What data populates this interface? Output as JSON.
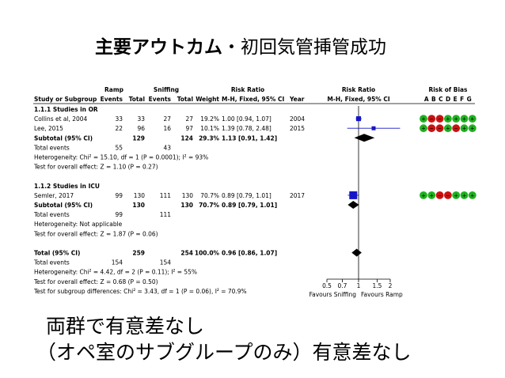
{
  "title": {
    "bold": "主要アウトカム",
    "sep": "・",
    "rest": "初回気管挿管成功"
  },
  "headers": {
    "group1": "Ramp",
    "group2": "Sniffing",
    "risk_ratio": "Risk Ratio",
    "risk_ratio2": "Risk Ratio",
    "risk_of_bias": "Risk of Bias",
    "study": "Study or Subgroup",
    "events1": "Events",
    "total1": "Total",
    "events2": "Events",
    "total2": "Total",
    "weight": "Weight",
    "method": "M-H, Fixed, 95% CI",
    "year": "Year",
    "method2": "M-H, Fixed, 95% CI",
    "bias_letters": "A B C D E F G"
  },
  "rows": [
    {
      "text": "1.1.1 Studies in OR",
      "bold": true
    },
    {
      "text": "Collins et al, 2004",
      "e1": "33",
      "t1": "33",
      "e2": "27",
      "t2": "27",
      "w": "19.2%",
      "ci": "1.00 [0.94, 1.07]",
      "yr": "2004"
    },
    {
      "text": "Lee, 2015",
      "e1": "22",
      "t1": "96",
      "e2": "16",
      "t2": "97",
      "w": "10.1%",
      "ci": "1.39 [0.78, 2.48]",
      "yr": "2015"
    },
    {
      "text": "Subtotal (95% CI)",
      "bold": true,
      "t1": "129",
      "t2": "124",
      "w": "29.3%",
      "ci": "1.13 [0.91, 1.42]"
    },
    {
      "text": "Total events",
      "e1": "55",
      "e2": "43"
    },
    {
      "text": "Heterogeneity: Chi² = 15.10, df = 1 (P = 0.0001); I² = 93%"
    },
    {
      "text": "Test for overall effect: Z = 1.10 (P = 0.27)"
    },
    {
      "text": ""
    },
    {
      "text": "1.1.2 Studies in ICU",
      "bold": true
    },
    {
      "text": "Semler, 2017",
      "e1": "99",
      "t1": "130",
      "e2": "111",
      "t2": "130",
      "w": "70.7%",
      "ci": "0.89 [0.79, 1.01]",
      "yr": "2017"
    },
    {
      "text": "Subtotal (95% CI)",
      "bold": true,
      "t1": "130",
      "t2": "130",
      "w": "70.7%",
      "ci": "0.89 [0.79, 1.01]"
    },
    {
      "text": "Total events",
      "e1": "99",
      "e2": "111"
    },
    {
      "text": "Heterogeneity: Not applicable"
    },
    {
      "text": "Test for overall effect: Z = 1.87 (P = 0.06)"
    },
    {
      "text": ""
    },
    {
      "text": "Total (95% CI)",
      "bold": true,
      "t1": "259",
      "t2": "254",
      "w": "100.0%",
      "ci": "0.96 [0.86, 1.07]"
    },
    {
      "text": "Total events",
      "e1": "154",
      "e2": "154"
    },
    {
      "text": "Heterogeneity: Chi² = 4.42, df = 2 (P = 0.11); I² = 55%"
    },
    {
      "text": "Test for overall effect: Z = 0.68 (P = 0.50)"
    },
    {
      "text": "Test for subgroup differences: Chi² = 3.43, df = 1 (P = 0.06), I² = 70.9%"
    }
  ],
  "chart_data": {
    "type": "forest",
    "x_scale": "log",
    "xlim": [
      0.5,
      2
    ],
    "ticks": [
      "0.5",
      "0.7",
      "1",
      "1.5",
      "2"
    ],
    "tick_values": [
      0.5,
      0.7,
      1,
      1.5,
      2
    ],
    "null_line": 1,
    "axis_left_label": "Favours Sniffing",
    "axis_right_label": "Favours Ramp",
    "studies": [
      {
        "row": 1,
        "rr": 1.0,
        "lo": 0.94,
        "hi": 1.07,
        "weight": 19.2
      },
      {
        "row": 2,
        "rr": 1.39,
        "lo": 0.78,
        "hi": 2.48,
        "weight": 10.1
      },
      {
        "row": 9,
        "rr": 0.89,
        "lo": 0.79,
        "hi": 1.01,
        "weight": 70.7
      }
    ],
    "diamonds": [
      {
        "row": 3,
        "rr": 1.13,
        "lo": 0.91,
        "hi": 1.42
      },
      {
        "row": 10,
        "rr": 0.89,
        "lo": 0.79,
        "hi": 1.01
      },
      {
        "row": 15,
        "rr": 0.96,
        "lo": 0.86,
        "hi": 1.07
      }
    ],
    "bias": [
      {
        "row": 1,
        "marks": [
          "low",
          "high",
          "high",
          "low",
          "low",
          "low",
          "low"
        ]
      },
      {
        "row": 2,
        "marks": [
          "low",
          "high",
          "high",
          "low",
          "high",
          "low",
          "low"
        ]
      },
      {
        "row": 9,
        "marks": [
          "low",
          "low",
          "high",
          "high",
          "low",
          "low",
          "low"
        ]
      }
    ],
    "colors": {
      "study": "#1515c8",
      "diamond": "#000000",
      "low": "#1fb21f",
      "high": "#cc1111"
    }
  },
  "conclusion": {
    "line1": "両群で有意差なし",
    "line2": "（オペ室のサブグループのみ）有意差なし"
  }
}
